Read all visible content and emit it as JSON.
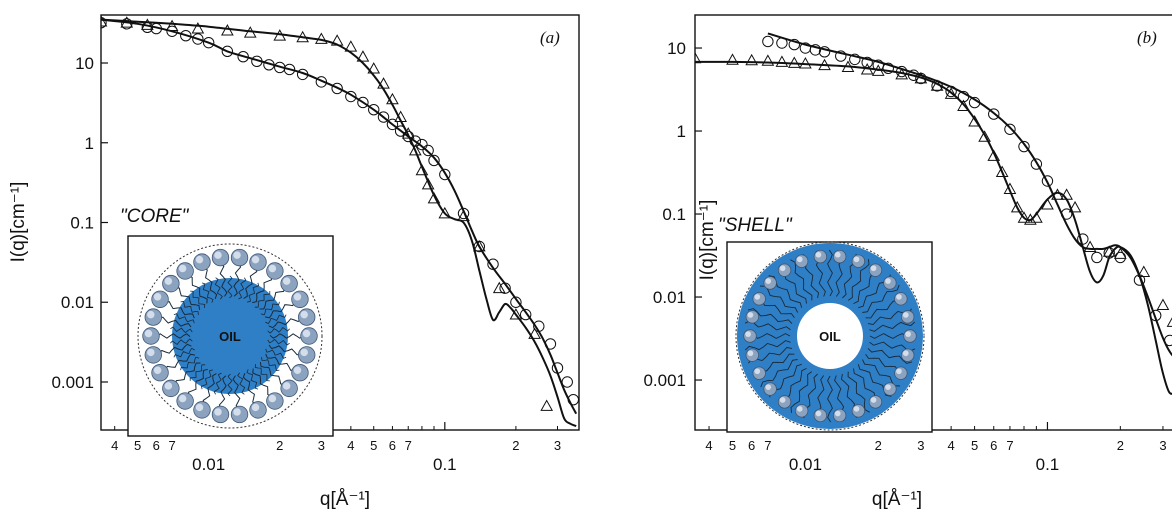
{
  "chart_data": [
    {
      "type": "scatter",
      "panel_label": "(a)",
      "xlabel": "q[Å⁻¹]",
      "ylabel": "I(q)[cm⁻¹]",
      "x_scale": "log",
      "y_scale": "log",
      "xlim": [
        0.0035,
        0.37
      ],
      "ylim": [
        0.00025,
        40
      ],
      "x_major_ticks": [
        0.01,
        0.1
      ],
      "x_major_labels": [
        "0.01",
        "0.1"
      ],
      "x_minor_ticks": [
        0.004,
        0.005,
        0.006,
        0.007,
        0.008,
        0.009,
        0.02,
        0.03,
        0.04,
        0.05,
        0.06,
        0.07,
        0.08,
        0.09,
        0.2,
        0.3
      ],
      "x_minor_labels": [
        "4",
        "5",
        "6",
        "7",
        "",
        "",
        "2",
        "3",
        "4",
        "5",
        "6",
        "7",
        "",
        "",
        "2",
        "3"
      ],
      "y_ticks": [
        0.001,
        0.01,
        0.1,
        1,
        10
      ],
      "y_tick_labels": [
        "0.001",
        "0.01",
        "0.1",
        "1",
        "10"
      ],
      "grid": false,
      "inset": {
        "label": "\"CORE\"",
        "text": "OIL"
      },
      "series": [
        {
          "marker": "triangle",
          "x": [
            0.0035,
            0.0045,
            0.0055,
            0.007,
            0.009,
            0.012,
            0.015,
            0.02,
            0.025,
            0.03,
            0.035,
            0.04,
            0.045,
            0.05,
            0.055,
            0.06,
            0.065,
            0.07,
            0.075,
            0.08,
            0.085,
            0.09,
            0.1,
            0.12,
            0.14,
            0.17,
            0.2,
            0.24,
            0.27
          ],
          "y": [
            33,
            32,
            30,
            29,
            27,
            25.5,
            24,
            22,
            21,
            20,
            19,
            16,
            12,
            8.5,
            5.5,
            3.5,
            2.1,
            1.3,
            0.8,
            0.45,
            0.3,
            0.2,
            0.13,
            0.12,
            0.05,
            0.015,
            0.007,
            0.004,
            0.0005
          ]
        },
        {
          "marker": "circle",
          "x": [
            0.0035,
            0.0045,
            0.0055,
            0.006,
            0.007,
            0.008,
            0.009,
            0.01,
            0.012,
            0.014,
            0.016,
            0.018,
            0.02,
            0.022,
            0.025,
            0.03,
            0.035,
            0.04,
            0.045,
            0.05,
            0.055,
            0.06,
            0.065,
            0.07,
            0.075,
            0.08,
            0.085,
            0.09,
            0.1,
            0.12,
            0.14,
            0.16,
            0.18,
            0.2,
            0.22,
            0.25,
            0.28,
            0.3,
            0.33,
            0.35
          ],
          "y": [
            32,
            31,
            28,
            27,
            25,
            22,
            20,
            18,
            14,
            12,
            10.5,
            9.5,
            8.8,
            8.3,
            7.2,
            5.8,
            4.8,
            3.8,
            3.2,
            2.6,
            2.1,
            1.7,
            1.4,
            1.2,
            1.05,
            0.95,
            0.8,
            0.6,
            0.4,
            0.13,
            0.05,
            0.03,
            0.015,
            0.01,
            0.007,
            0.005,
            0.003,
            0.0015,
            0.001,
            0.0006
          ]
        }
      ],
      "fit_curves": [
        {
          "x": [
            0.0035,
            0.005,
            0.007,
            0.01,
            0.015,
            0.02,
            0.025,
            0.03,
            0.035,
            0.04,
            0.045,
            0.05,
            0.055,
            0.06,
            0.065,
            0.07,
            0.075,
            0.08,
            0.09,
            0.1,
            0.11,
            0.12,
            0.13,
            0.14,
            0.15,
            0.16,
            0.17,
            0.18,
            0.19,
            0.2,
            0.22,
            0.24,
            0.26,
            0.28,
            0.3,
            0.32,
            0.34,
            0.36
          ],
          "y": [
            35,
            33,
            31,
            28.5,
            25,
            23,
            21,
            19.5,
            17,
            13.5,
            10,
            7,
            4.7,
            3,
            1.9,
            1.25,
            0.8,
            0.5,
            0.22,
            0.13,
            0.11,
            0.1,
            0.06,
            0.025,
            0.011,
            0.006,
            0.0075,
            0.0095,
            0.0085,
            0.007,
            0.0048,
            0.0032,
            0.002,
            0.0012,
            0.00065,
            0.00035,
            0.0003,
            0.00028
          ]
        },
        {
          "x": [
            0.0035,
            0.005,
            0.007,
            0.01,
            0.012,
            0.015,
            0.02,
            0.025,
            0.03,
            0.035,
            0.04,
            0.05,
            0.06,
            0.07,
            0.08,
            0.09,
            0.1,
            0.11,
            0.12,
            0.13,
            0.14,
            0.16,
            0.18,
            0.2,
            0.22,
            0.24,
            0.26,
            0.28,
            0.3,
            0.32,
            0.34,
            0.36
          ],
          "y": [
            35,
            31,
            25,
            18,
            14,
            11.5,
            9,
            7.5,
            6,
            4.9,
            4,
            2.6,
            1.7,
            1.2,
            0.9,
            0.65,
            0.42,
            0.25,
            0.14,
            0.08,
            0.05,
            0.027,
            0.017,
            0.011,
            0.0075,
            0.0052,
            0.0035,
            0.0022,
            0.0013,
            0.0008,
            0.00055,
            0.0004
          ]
        }
      ]
    },
    {
      "type": "scatter",
      "panel_label": "(b)",
      "xlabel": "q[Å⁻¹]",
      "ylabel": "I(q)[cm⁻¹]",
      "x_scale": "log",
      "y_scale": "log",
      "xlim": [
        0.0035,
        0.37
      ],
      "ylim": [
        0.00025,
        25
      ],
      "x_major_ticks": [
        0.01,
        0.1
      ],
      "x_major_labels": [
        "0.01",
        "0.1"
      ],
      "x_minor_ticks": [
        0.004,
        0.005,
        0.006,
        0.007,
        0.008,
        0.009,
        0.02,
        0.03,
        0.04,
        0.05,
        0.06,
        0.07,
        0.08,
        0.09,
        0.2,
        0.3
      ],
      "x_minor_labels": [
        "4",
        "5",
        "6",
        "7",
        "",
        "",
        "2",
        "3",
        "4",
        "5",
        "6",
        "7",
        "",
        "",
        "2",
        "3"
      ],
      "y_ticks": [
        0.001,
        0.01,
        0.1,
        1,
        10
      ],
      "y_tick_labels": [
        "0.001",
        "0.01",
        "0.1",
        "1",
        "10"
      ],
      "grid": false,
      "inset": {
        "label": "\"SHELL\"",
        "text": "OIL"
      },
      "series": [
        {
          "marker": "triangle",
          "x": [
            0.0035,
            0.005,
            0.006,
            0.007,
            0.008,
            0.009,
            0.01,
            0.012,
            0.015,
            0.018,
            0.02,
            0.025,
            0.03,
            0.035,
            0.04,
            0.045,
            0.05,
            0.055,
            0.06,
            0.065,
            0.07,
            0.075,
            0.08,
            0.085,
            0.09,
            0.1,
            0.11,
            0.12,
            0.13,
            0.15,
            0.18,
            0.2,
            0.25,
            0.3,
            0.33,
            0.35
          ],
          "y": [
            7.5,
            7.2,
            7.1,
            7,
            6.8,
            6.6,
            6.5,
            6.2,
            5.9,
            5.5,
            5.3,
            4.8,
            4.3,
            3.5,
            2.8,
            2,
            1.3,
            0.85,
            0.5,
            0.32,
            0.2,
            0.12,
            0.09,
            0.085,
            0.09,
            0.13,
            0.17,
            0.17,
            0.12,
            0.04,
            0.035,
            0.033,
            0.02,
            0.008,
            0.005,
            0.004
          ]
        },
        {
          "marker": "circle",
          "x": [
            0.007,
            0.008,
            0.009,
            0.01,
            0.011,
            0.012,
            0.014,
            0.016,
            0.018,
            0.02,
            0.022,
            0.025,
            0.028,
            0.03,
            0.035,
            0.04,
            0.045,
            0.05,
            0.06,
            0.07,
            0.08,
            0.09,
            0.1,
            0.12,
            0.14,
            0.16,
            0.18,
            0.2,
            0.24,
            0.28,
            0.32,
            0.35
          ],
          "y": [
            12,
            11.5,
            11,
            10,
            9.5,
            9,
            8,
            7.3,
            6.7,
            6.2,
            5.7,
            5.2,
            4.7,
            4.3,
            3.5,
            3,
            2.6,
            2.2,
            1.6,
            1.05,
            0.65,
            0.4,
            0.25,
            0.1,
            0.05,
            0.03,
            0.034,
            0.03,
            0.016,
            0.006,
            0.003,
            0.0025
          ]
        }
      ],
      "fit_curves": [
        {
          "x": [
            0.0035,
            0.005,
            0.007,
            0.01,
            0.015,
            0.02,
            0.025,
            0.03,
            0.035,
            0.04,
            0.045,
            0.05,
            0.055,
            0.06,
            0.065,
            0.07,
            0.075,
            0.08,
            0.085,
            0.09,
            0.1,
            0.11,
            0.12,
            0.13,
            0.14,
            0.15,
            0.16,
            0.17,
            0.18,
            0.19,
            0.2,
            0.22,
            0.24,
            0.26,
            0.28,
            0.3,
            0.32,
            0.34,
            0.36
          ],
          "y": [
            6.8,
            6.8,
            6.7,
            6.4,
            6,
            5.5,
            5,
            4.4,
            3.7,
            2.9,
            2.1,
            1.4,
            0.9,
            0.55,
            0.32,
            0.19,
            0.12,
            0.09,
            0.085,
            0.1,
            0.15,
            0.18,
            0.15,
            0.085,
            0.04,
            0.02,
            0.015,
            0.018,
            0.03,
            0.038,
            0.04,
            0.032,
            0.018,
            0.008,
            0.003,
            0.0012,
            0.0007,
            0.0008,
            0.0015
          ]
        },
        {
          "x": [
            0.007,
            0.01,
            0.015,
            0.02,
            0.03,
            0.04,
            0.05,
            0.06,
            0.07,
            0.08,
            0.09,
            0.1,
            0.11,
            0.12,
            0.13,
            0.14,
            0.15,
            0.16,
            0.17,
            0.18,
            0.19,
            0.2,
            0.22,
            0.24,
            0.26,
            0.28,
            0.3,
            0.32,
            0.34,
            0.36
          ],
          "y": [
            15,
            11,
            8.3,
            6.8,
            4.7,
            3.4,
            2.4,
            1.65,
            1.1,
            0.7,
            0.42,
            0.24,
            0.13,
            0.075,
            0.05,
            0.04,
            0.038,
            0.038,
            0.038,
            0.04,
            0.042,
            0.04,
            0.03,
            0.018,
            0.01,
            0.0055,
            0.0032,
            0.0022,
            0.0018,
            0.0017
          ]
        }
      ]
    }
  ]
}
